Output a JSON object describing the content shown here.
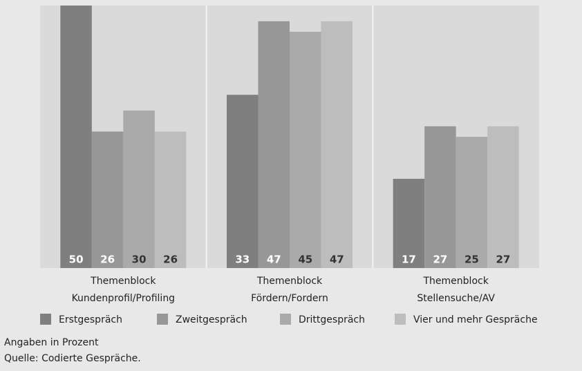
{
  "chart_data": {
    "type": "bar",
    "categories": [
      [
        "Themenblock",
        "Kundenprofil/Profiling"
      ],
      [
        "Themenblock",
        "Fördern/Fordern"
      ],
      [
        "Themenblock",
        "Stellensuche/AV"
      ]
    ],
    "series": [
      {
        "name": "Erstgespräch",
        "color": "#7f7f7f",
        "label_color": "#ffffff",
        "values": [
          50,
          33,
          17
        ]
      },
      {
        "name": "Zweitgespräch",
        "color": "#979797",
        "label_color": "#ffffff",
        "values": [
          26,
          47,
          27
        ]
      },
      {
        "name": "Drittgespräch",
        "color": "#aaaaaa",
        "label_color": "#333333",
        "values": [
          30,
          45,
          25
        ]
      },
      {
        "name": "Vier und mehr Gespräche",
        "color": "#bdbdbd",
        "label_color": "#333333",
        "values": [
          26,
          47,
          27
        ]
      }
    ],
    "ylim": [
      0,
      50
    ],
    "notes": [
      "Angaben in Prozent",
      "Quelle: Codierte Gespräche."
    ]
  }
}
